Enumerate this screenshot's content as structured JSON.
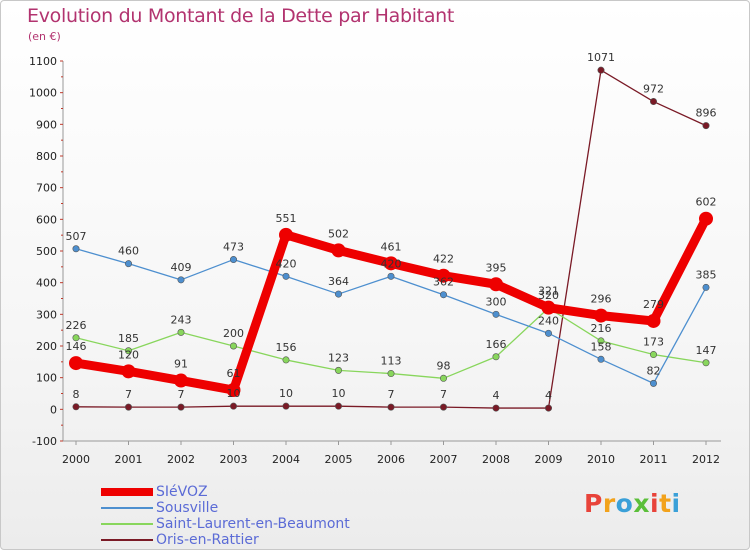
{
  "title": "Evolution du Montant de la Dette par Habitant",
  "unit_label": "(en €)",
  "brand": {
    "text": "Proxiti",
    "colors": [
      "#e8433a",
      "#f2a21b",
      "#3aa0d8",
      "#5bbf3a",
      "#e8433a",
      "#f2a21b",
      "#3aa0d8"
    ]
  },
  "chart_data": {
    "type": "line",
    "title": "Evolution du Montant de la Dette par Habitant",
    "ylabel": "(en €)",
    "xlabel": "",
    "ylim": [
      -100,
      1100
    ],
    "grid": false,
    "legend_position": "bottom-left",
    "x": [
      "2000",
      "2001",
      "2002",
      "2003",
      "2004",
      "2005",
      "2006",
      "2007",
      "2008",
      "2009",
      "2010",
      "2011",
      "2012"
    ],
    "yticks": [
      -100,
      0,
      100,
      200,
      300,
      400,
      500,
      600,
      700,
      800,
      900,
      1000,
      1100
    ],
    "series": [
      {
        "name": "SIéVOZ",
        "color": "#ee0000",
        "width": 9,
        "marker": 7,
        "values": [
          146,
          120,
          91,
          61,
          551,
          502,
          461,
          422,
          395,
          321,
          296,
          279,
          602
        ],
        "labels": [
          "146",
          "120",
          "91",
          "61",
          "551",
          "502",
          "461",
          "422",
          "395",
          "321",
          "296",
          "279",
          "602"
        ]
      },
      {
        "name": "Sousville",
        "color": "#4d8fcf",
        "width": 1.3,
        "marker": 3.2,
        "values": [
          507,
          460,
          409,
          473,
          420,
          364,
          420,
          362,
          300,
          240,
          158,
          82,
          385
        ],
        "labels": [
          "507",
          "460",
          "409",
          "473",
          "420",
          "364",
          "420",
          "362",
          "300",
          "240",
          "158",
          "82",
          "385"
        ]
      },
      {
        "name": "Saint-Laurent-en-Beaumont",
        "color": "#88d65c",
        "width": 1.3,
        "marker": 3.2,
        "values": [
          226,
          185,
          243,
          200,
          156,
          123,
          113,
          98,
          166,
          320,
          216,
          173,
          147
        ],
        "labels": [
          "226",
          "185",
          "243",
          "200",
          "156",
          "123",
          "113",
          "98",
          "166",
          "320",
          "216",
          "173",
          "147"
        ]
      },
      {
        "name": "Oris-en-Rattier",
        "color": "#7a1a26",
        "width": 1.3,
        "marker": 3.2,
        "values": [
          8,
          7,
          7,
          10,
          10,
          10,
          7,
          7,
          4,
          4,
          1071,
          972,
          896
        ],
        "labels": [
          "8",
          "7",
          "7",
          "10",
          "10",
          "10",
          "7",
          "7",
          "4",
          "4",
          "1071",
          "972",
          "896"
        ]
      }
    ]
  }
}
